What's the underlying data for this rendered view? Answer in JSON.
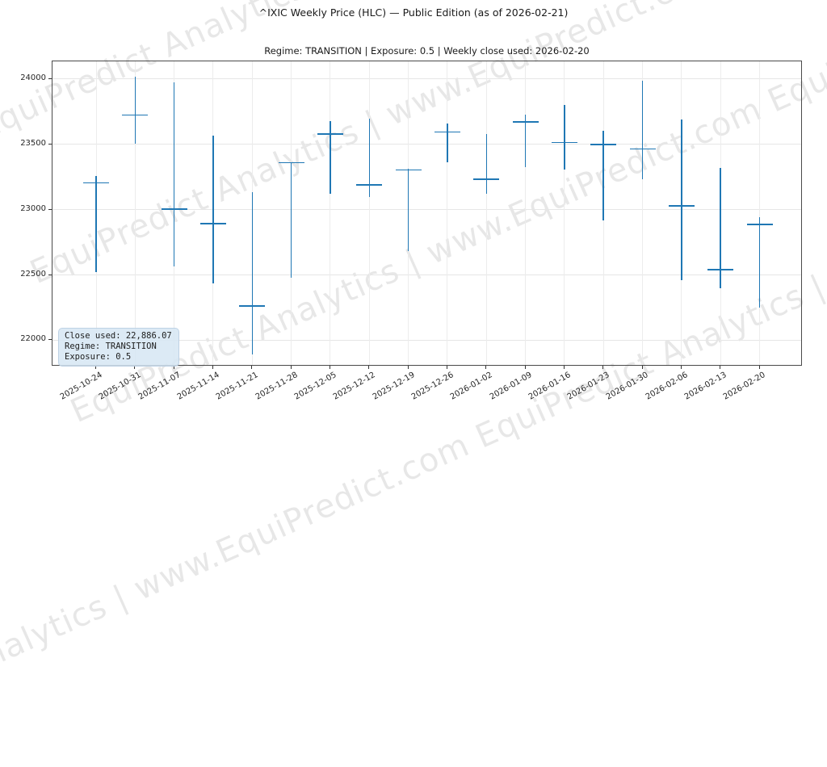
{
  "watermark": {
    "text": "EquiPredict Analytics | www.EquiPredict.com",
    "color_hex": "#e8e8e8"
  },
  "annotation": {
    "lines": [
      "Close used: 22,886.07",
      "Regime: TRANSITION",
      "Exposure: 0.5"
    ],
    "bg_hex": "#d6e6f3"
  },
  "chart_data": {
    "type": "bar",
    "subtype": "hlc",
    "title": "^IXIC Weekly Price (HLC) — Public Edition (as of 2026-02-21)",
    "subtitle": "Regime: TRANSITION | Exposure: 0.5 | Weekly close used: 2026-02-20",
    "xlabel": "",
    "ylabel": "",
    "grid": true,
    "legend": "none",
    "bar_color": "#1f77b4",
    "ylim": [
      21799,
      24136
    ],
    "yticks": [
      22000,
      22500,
      23000,
      23500,
      24000
    ],
    "categories": [
      "2025-10-24",
      "2025-10-31",
      "2025-11-07",
      "2025-11-14",
      "2025-11-21",
      "2025-11-28",
      "2025-12-05",
      "2025-12-12",
      "2025-12-19",
      "2025-12-26",
      "2026-01-02",
      "2026-01-09",
      "2026-01-16",
      "2026-01-23",
      "2026-01-30",
      "2026-02-06",
      "2026-02-13",
      "2026-02-20"
    ],
    "bars": [
      {
        "date": "2025-10-24",
        "high": 23255,
        "low": 22520,
        "close": 23205
      },
      {
        "date": "2025-10-31",
        "high": 24020,
        "low": 23505,
        "close": 23725
      },
      {
        "date": "2025-11-07",
        "high": 23975,
        "low": 22565,
        "close": 23005
      },
      {
        "date": "2025-11-14",
        "high": 23570,
        "low": 22435,
        "close": 22895
      },
      {
        "date": "2025-11-21",
        "high": 23135,
        "low": 21890,
        "close": 22265
      },
      {
        "date": "2025-11-28",
        "high": 23365,
        "low": 22480,
        "close": 23360
      },
      {
        "date": "2025-12-05",
        "high": 23680,
        "low": 23120,
        "close": 23578
      },
      {
        "date": "2025-12-12",
        "high": 23700,
        "low": 23095,
        "close": 23190
      },
      {
        "date": "2025-12-19",
        "high": 23315,
        "low": 22685,
        "close": 23305
      },
      {
        "date": "2025-12-26",
        "high": 23660,
        "low": 23365,
        "close": 23595
      },
      {
        "date": "2026-01-02",
        "high": 23580,
        "low": 23120,
        "close": 23235
      },
      {
        "date": "2026-01-09",
        "high": 23730,
        "low": 23325,
        "close": 23670
      },
      {
        "date": "2026-01-16",
        "high": 23805,
        "low": 23305,
        "close": 23515
      },
      {
        "date": "2026-01-23",
        "high": 23605,
        "low": 22920,
        "close": 23500
      },
      {
        "date": "2026-01-30",
        "high": 23985,
        "low": 23235,
        "close": 23465
      },
      {
        "date": "2026-02-06",
        "high": 23690,
        "low": 22460,
        "close": 23030
      },
      {
        "date": "2026-02-13",
        "high": 23318,
        "low": 22397,
        "close": 22543
      },
      {
        "date": "2026-02-20",
        "high": 22945,
        "low": 22250,
        "close": 22886.07
      }
    ]
  }
}
